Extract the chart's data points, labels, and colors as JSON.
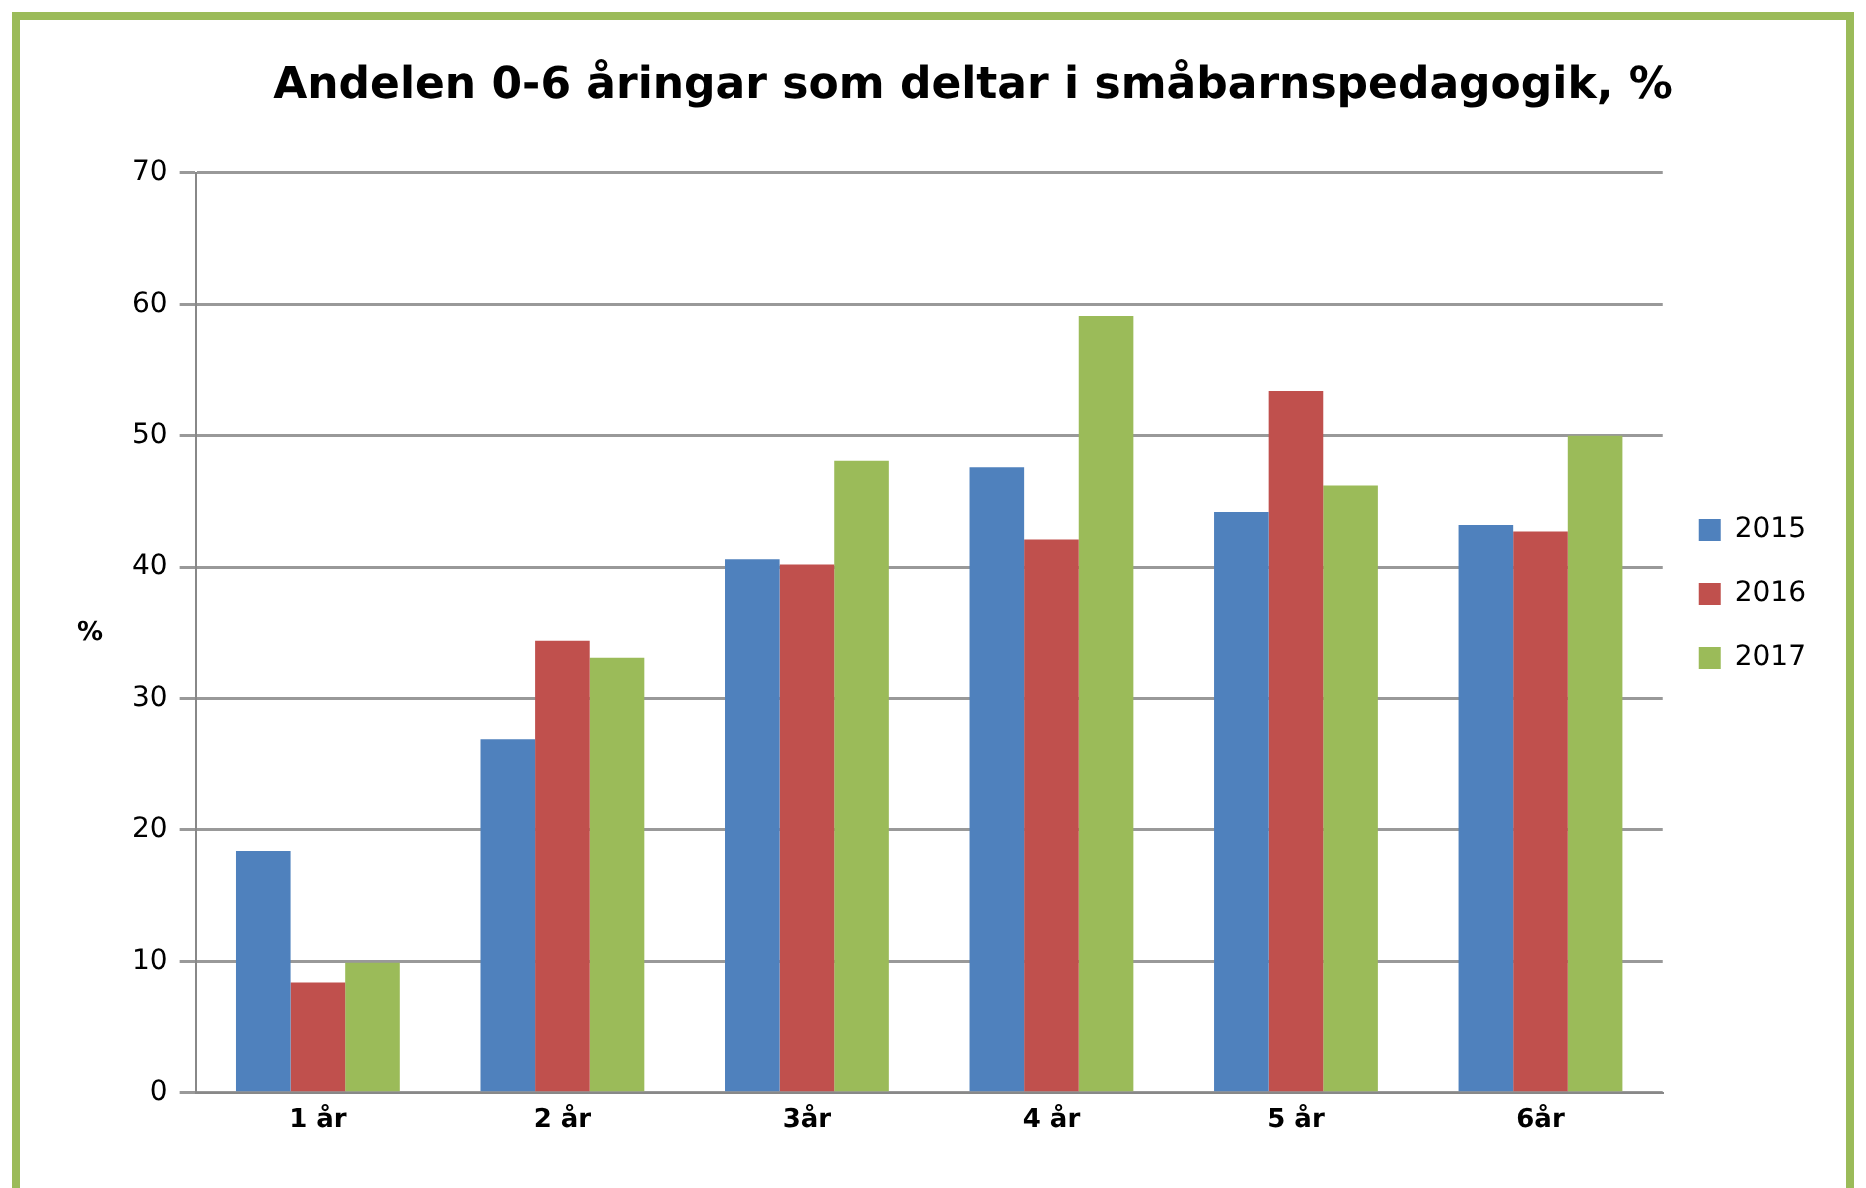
{
  "chart_data": {
    "type": "bar",
    "title": "Andelen 0-6 åringar som deltar i småbarnspedagogik, %",
    "ylabel": "%",
    "categories": [
      "1 år",
      "2 år",
      "3år",
      "4 år",
      "5 år",
      "6år"
    ],
    "series": [
      {
        "name": "2015",
        "color": "#4f81bd",
        "values": [
          18.4,
          26.9,
          40.6,
          47.6,
          44.2,
          43.2
        ]
      },
      {
        "name": "2016",
        "color": "#c0504d",
        "values": [
          8.4,
          34.4,
          40.2,
          42.1,
          53.4,
          42.7
        ]
      },
      {
        "name": "2017",
        "color": "#9bbb59",
        "values": [
          9.9,
          33.1,
          48.1,
          59.1,
          46.2,
          50.0
        ]
      }
    ],
    "ylim": [
      0,
      70
    ],
    "yticks": [
      0,
      10,
      20,
      30,
      40,
      50,
      60,
      70
    ],
    "grid": "y",
    "legend": "right"
  }
}
